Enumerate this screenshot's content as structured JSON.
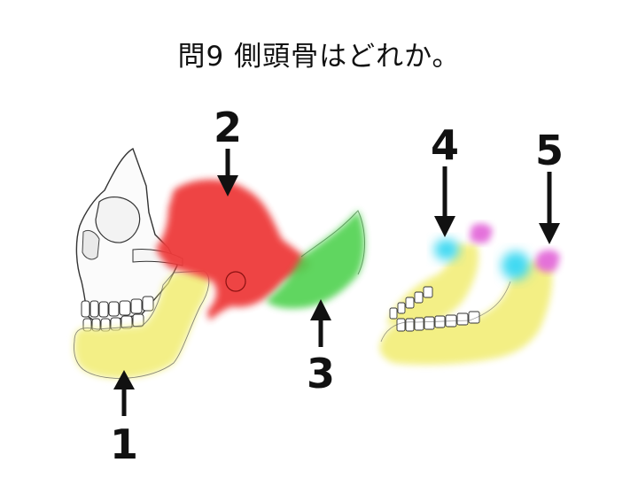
{
  "question": "問9 側頭骨はどれか。",
  "labels": {
    "one": "1",
    "two": "2",
    "three": "3",
    "four": "4",
    "five": "5"
  },
  "colors": {
    "label_1": "#f2ee7a",
    "label_2": "#ee3a3a",
    "label_3": "#4fd24f",
    "label_4": "#3fd9f2",
    "label_5": "#e36ad9"
  }
}
